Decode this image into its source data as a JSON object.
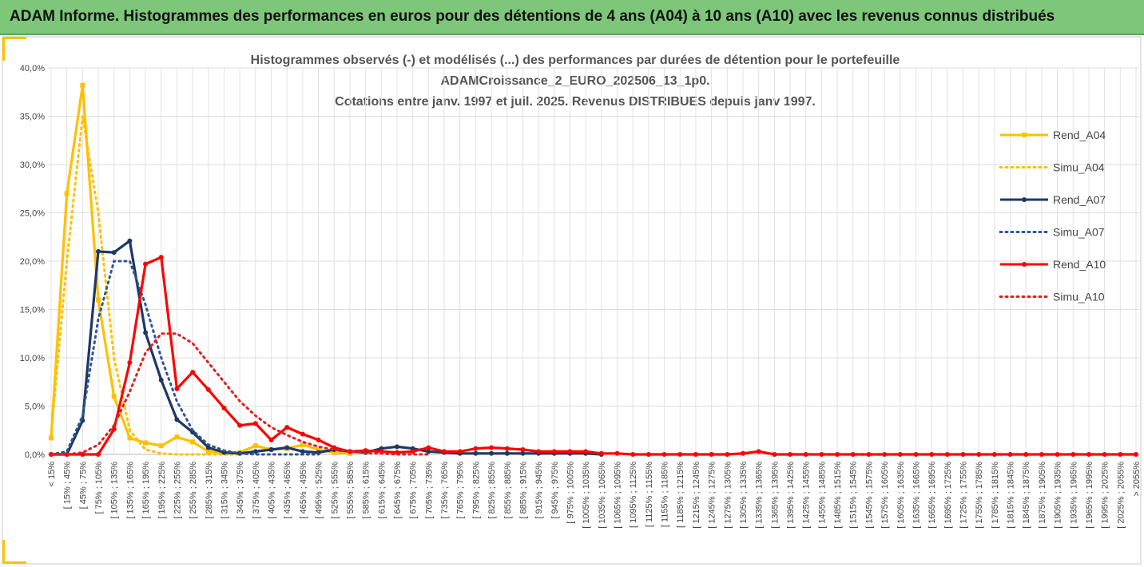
{
  "header": {
    "title": "ADAM Informe. Histogrammes des performances en euros pour des détentions de 4 ans (A04) à 10 ans (A10) avec les revenus connus distribués"
  },
  "chart_data": {
    "type": "line",
    "title": [
      "Histogrammes observés (-) et modélisés (...) des performances par durées de détention pour le portefeuille",
      "ADAMCroissance_2_EURO_202506_13_1p0.",
      "Cotations entre janv. 1997 et juil. 2025. Revenus DISTRIBUES depuis janv 1997."
    ],
    "categories": [
      "< 15%",
      "[ 15% ; 45%",
      "[ 45% ; 75%",
      "[ 75% ; 105%",
      "[ 105% ; 135%",
      "[ 135% ; 165%",
      "[ 165% ; 195%",
      "[ 195% ; 225%",
      "[ 225% ; 255%",
      "[ 255% ; 285%",
      "[ 285% ; 315%",
      "[ 315% ; 345%",
      "[ 345% ; 375%",
      "[ 375% ; 405%",
      "[ 405% ; 435%",
      "[ 435% ; 465%",
      "[ 465% ; 495%",
      "[ 495% ; 525%",
      "[ 525% ; 555%",
      "[ 555% ; 585%",
      "[ 585% ; 615%",
      "[ 615% ; 645%",
      "[ 645% ; 675%",
      "[ 675% ; 705%",
      "[ 705% ; 735%",
      "[ 735% ; 765%",
      "[ 765% ; 795%",
      "[ 795% ; 825%",
      "[ 825% ; 855%",
      "[ 855% ; 885%",
      "[ 885% ; 915%",
      "[ 915% ; 945%",
      "[ 945% ; 975%",
      "[ 975% ; 1005%",
      "[ 1005% ; 1035%",
      "[ 1035% ; 1065%",
      "[ 1065% ; 1095%",
      "[ 1095% ; 1125%",
      "[ 1125% ; 1155%",
      "[ 1155% ; 1185%",
      "[ 1185% ; 1215%",
      "[ 1215% ; 1245%",
      "[ 1245% ; 1275%",
      "[ 1275% ; 1305%",
      "[ 1305% ; 1335%",
      "[ 1335% ; 1365%",
      "[ 1365% ; 1395%",
      "[ 1395% ; 1425%",
      "[ 1425% ; 1455%",
      "[ 1455% ; 1485%",
      "[ 1485% ; 1515%",
      "[ 1515% ; 1545%",
      "[ 1545% ; 1575%",
      "[ 1575% ; 1605%",
      "[ 1605% ; 1635%",
      "[ 1635% ; 1665%",
      "[ 1665% ; 1695%",
      "[ 1695% ; 1725%",
      "[ 1725% ; 1755%",
      "[ 1755% ; 1785%",
      "[ 1785% ; 1815%",
      "[ 1815% ; 1845%",
      "[ 1845% ; 1875%",
      "[ 1875% ; 1905%",
      "[ 1905% ; 1935%",
      "[ 1935% ; 1965%",
      "[ 1965% ; 1995%",
      "[ 1995% ; 2025%",
      "[ 2025% ; 2055%",
      "> 2055%"
    ],
    "ylim": [
      0,
      40
    ],
    "yticks": [
      {
        "value": 0,
        "label": "0,0%"
      },
      {
        "value": 5,
        "label": "5,0%"
      },
      {
        "value": 10,
        "label": "10,0%"
      },
      {
        "value": 15,
        "label": "15,0%"
      },
      {
        "value": 20,
        "label": "20,0%"
      },
      {
        "value": 25,
        "label": "25,0%"
      },
      {
        "value": 30,
        "label": "30,0%"
      },
      {
        "value": 35,
        "label": "35,0%"
      },
      {
        "value": 40,
        "label": "40,0%"
      }
    ],
    "grid": true,
    "legend": "right",
    "series": [
      {
        "name": "Rend_A04",
        "color": "#ffc000",
        "dash": "solid",
        "marker": "square",
        "values": [
          1.7,
          27,
          38.2,
          16,
          6,
          1.7,
          1.2,
          0.9,
          1.8,
          1.3,
          0.3,
          0.2,
          0.2,
          0.9,
          0.5,
          0.6,
          1.0,
          0.5,
          0.2,
          0.1,
          null,
          null,
          null,
          null,
          null,
          null,
          null,
          null,
          null,
          null,
          null,
          null,
          null,
          null,
          null,
          null,
          null,
          null,
          null,
          null,
          null,
          null,
          null,
          null,
          null,
          null,
          null,
          null,
          null,
          null,
          null,
          null,
          null,
          null,
          null,
          null,
          null,
          null,
          null,
          null,
          null,
          null,
          null,
          null,
          null,
          null,
          null,
          null,
          null,
          null
        ]
      },
      {
        "name": "Simu_A04",
        "color": "#ffc000",
        "dash": "dotted",
        "marker": "none",
        "values": [
          2,
          20,
          35,
          25,
          10,
          2.5,
          0.5,
          0.1,
          0,
          0,
          0,
          0,
          0,
          null,
          null,
          null,
          null,
          null,
          null,
          null,
          null,
          null,
          null,
          null,
          null,
          null,
          null,
          null,
          null,
          null,
          null,
          null,
          null,
          null,
          null,
          null,
          null,
          null,
          null,
          null,
          null,
          null,
          null,
          null,
          null,
          null,
          null,
          null,
          null,
          null,
          null,
          null,
          null,
          null,
          null,
          null,
          null,
          null,
          null,
          null,
          null,
          null,
          null,
          null,
          null,
          null,
          null,
          null,
          null,
          null
        ]
      },
      {
        "name": "Rend_A07",
        "color": "#1f3864",
        "dash": "solid",
        "marker": "circle",
        "values": [
          0,
          0,
          3.5,
          21,
          20.9,
          22.1,
          12.6,
          7.7,
          3.6,
          2.3,
          0.7,
          0.2,
          0.1,
          0.3,
          0.5,
          0.7,
          0.3,
          0.2,
          0.5,
          0.3,
          0.2,
          0.6,
          0.8,
          0.6,
          0.3,
          0.2,
          0.1,
          0.1,
          0.1,
          0.1,
          0.1,
          0.1,
          0.1,
          0.1,
          0.1,
          0,
          null,
          null,
          null,
          null,
          null,
          null,
          null,
          null,
          null,
          null,
          null,
          null,
          null,
          null,
          null,
          null,
          null,
          null,
          null,
          null,
          null,
          null,
          null,
          null,
          null,
          null,
          null,
          null,
          null,
          null,
          null,
          null,
          null,
          null
        ]
      },
      {
        "name": "Simu_A07",
        "color": "#2f5597",
        "dash": "dotted",
        "marker": "none",
        "values": [
          0,
          0.3,
          4,
          14,
          20,
          20,
          15.5,
          10,
          5.5,
          2.5,
          1,
          0.4,
          0.1,
          0,
          0,
          0,
          0,
          0,
          null,
          null,
          null,
          null,
          null,
          null,
          null,
          null,
          null,
          null,
          null,
          null,
          null,
          null,
          null,
          null,
          null,
          null,
          null,
          null,
          null,
          null,
          null,
          null,
          null,
          null,
          null,
          null,
          null,
          null,
          null,
          null,
          null,
          null,
          null,
          null,
          null,
          null,
          null,
          null,
          null,
          null,
          null,
          null,
          null,
          null,
          null,
          null,
          null,
          null,
          null,
          null
        ]
      },
      {
        "name": "Rend_A10",
        "color": "#ff0000",
        "dash": "solid",
        "marker": "circle",
        "values": [
          0,
          0,
          0,
          0,
          2.6,
          9.5,
          19.7,
          20.4,
          6.8,
          8.5,
          6.7,
          4.8,
          3.0,
          3.2,
          1.5,
          2.8,
          2.1,
          1.5,
          0.7,
          0.3,
          0.4,
          0.3,
          0.2,
          0.3,
          0.7,
          0.3,
          0.3,
          0.6,
          0.7,
          0.6,
          0.5,
          0.3,
          0.3,
          0.3,
          0.3,
          0.1,
          0.1,
          0,
          0,
          0,
          0,
          0,
          0,
          0,
          0.1,
          0.3,
          0,
          0,
          0,
          0,
          0,
          0,
          0,
          0,
          0,
          0,
          0,
          0,
          0,
          0,
          0,
          0,
          0,
          0,
          0,
          0,
          0,
          0,
          0,
          0
        ]
      },
      {
        "name": "Simu_A10",
        "color": "#e02020",
        "dash": "dotted",
        "marker": "none",
        "values": [
          0,
          0,
          0.2,
          1,
          3,
          6.5,
          10.5,
          12.5,
          12.5,
          11.5,
          9.5,
          7.5,
          5.5,
          4,
          2.8,
          2,
          1.3,
          0.8,
          0.5,
          0.3,
          0.15,
          0.1,
          0,
          0,
          0,
          null,
          null,
          null,
          null,
          null,
          null,
          null,
          null,
          null,
          null,
          null,
          null,
          null,
          null,
          null,
          null,
          null,
          null,
          null,
          null,
          null,
          null,
          null,
          null,
          null,
          null,
          null,
          null,
          null,
          null,
          null,
          null,
          null,
          null,
          null,
          null,
          null,
          null,
          null,
          null,
          null,
          null,
          null,
          null,
          null
        ]
      }
    ]
  }
}
